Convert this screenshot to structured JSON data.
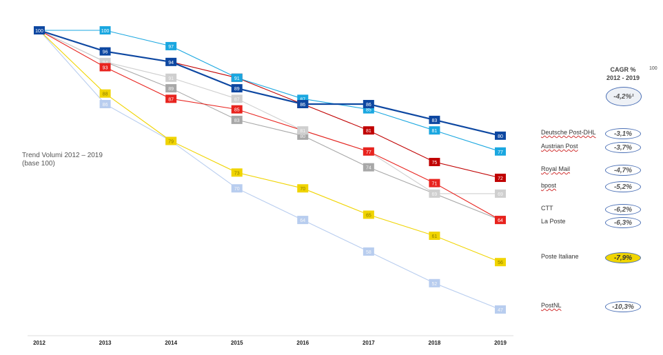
{
  "chart_data": {
    "type": "line",
    "x": [
      "2012",
      "2013",
      "2014",
      "2015",
      "2016",
      "2017",
      "2018",
      "2019"
    ],
    "series": [
      {
        "name": "Deutsche Post-DHL",
        "color": "#0d47a1",
        "values": [
          100,
          96,
          94,
          89,
          86,
          86,
          83,
          80
        ]
      },
      {
        "name": "Austrian Post",
        "color": "#1aa7e0",
        "values": [
          100,
          100,
          97,
          91,
          87,
          85,
          81,
          77
        ]
      },
      {
        "name": "Royal Mail",
        "color": "#c00000",
        "values": [
          100,
          96,
          94,
          91,
          86,
          81,
          75,
          72
        ]
      },
      {
        "name": "bpost",
        "color": "#cfcfcf",
        "values": [
          100,
          94,
          91,
          87,
          81,
          77,
          69,
          69
        ]
      },
      {
        "name": "CTT",
        "color": "#e8231e",
        "values": [
          100,
          93,
          87,
          85,
          81,
          77,
          71,
          64
        ]
      },
      {
        "name": "La Poste",
        "color": "#a8a8a8",
        "values": [
          100,
          94,
          89,
          83,
          80,
          74,
          69,
          64
        ]
      },
      {
        "name": "Poste Italiane",
        "color": "#f0d400",
        "values": [
          100,
          88,
          79,
          73,
          70,
          65,
          61,
          56
        ]
      },
      {
        "name": "PostNL",
        "color": "#b8cdef",
        "values": [
          100,
          86,
          79,
          70,
          64,
          58,
          52,
          47
        ]
      }
    ],
    "labels": {
      "Deutsche Post-DHL": [
        "100",
        "96",
        "94",
        "89",
        "86",
        "86",
        "83",
        "80"
      ],
      "Austrian Post": [
        "",
        "100",
        "97",
        "91",
        "87",
        "85",
        "81",
        "77"
      ],
      "Royal Mail": [
        "",
        "",
        "",
        "91",
        "86",
        "81",
        "75",
        "72"
      ],
      "bpost": [
        "",
        "94",
        "91",
        "87",
        "81",
        "77",
        "69",
        "69"
      ],
      "CTT": [
        "",
        "93",
        "87",
        "85",
        "",
        "77",
        "71",
        "64"
      ],
      "La Poste": [
        "",
        "",
        "89",
        "83",
        "80",
        "74",
        "",
        "64"
      ],
      "Poste Italiane": [
        "",
        "88",
        "79",
        "73",
        "70",
        "65",
        "61",
        "56"
      ],
      "PostNL": [
        "",
        "86",
        "79",
        "70",
        "64",
        "58",
        "52",
        "47"
      ]
    },
    "ylim": [
      40,
      102
    ],
    "grid": false,
    "legend": "right"
  },
  "side_title": {
    "line1": "Trend Volumi 2012 – 2019",
    "line2": "(base 100)"
  },
  "cagr": {
    "title": "CAGR %",
    "period": "2012 - 2019",
    "corner_note": "100",
    "total": "-4,2%¹"
  },
  "legend_items": [
    {
      "name": "Deutsche Post-DHL",
      "cagr": "-3,1%"
    },
    {
      "name": "Austrian Post",
      "cagr": "-3,7%"
    },
    {
      "name": "Royal Mail",
      "cagr": "-4,7%"
    },
    {
      "name": "bpost",
      "cagr": "-5,2%"
    },
    {
      "name": "CTT",
      "cagr": "-6,2%"
    },
    {
      "name": "La Poste",
      "cagr": "-6,3%"
    },
    {
      "name": "Poste Italiane",
      "cagr": "-7,9%"
    },
    {
      "name": "PostNL",
      "cagr": "-10,3%"
    }
  ]
}
